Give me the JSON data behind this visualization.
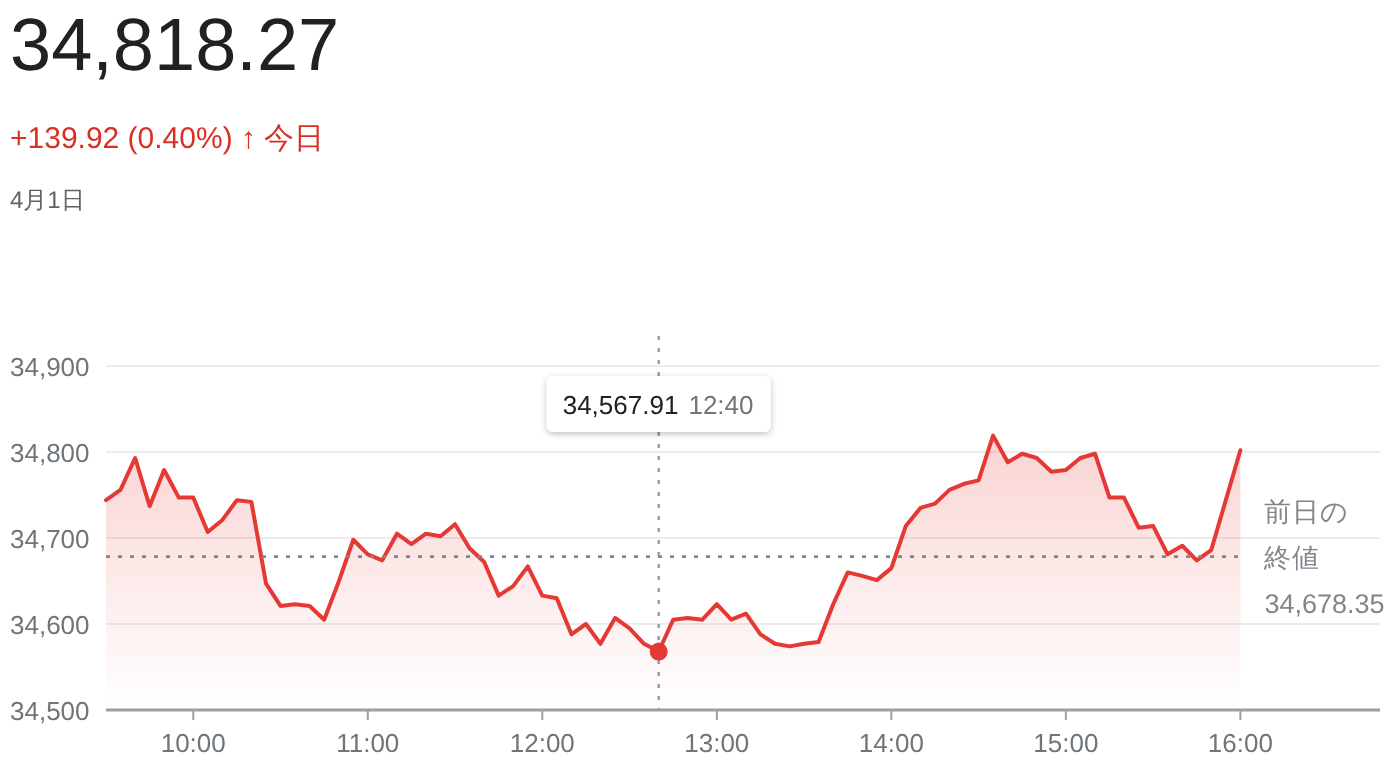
{
  "chart_data": {
    "type": "area",
    "title": "34,818.27",
    "subtitle": "+139.92 (0.40%) ↑ 今日",
    "annotations": [
      "4月1日",
      "34,567.91 12:40"
    ],
    "x": [
      9.5,
      9.583,
      9.667,
      9.75,
      9.833,
      9.917,
      10,
      10.083,
      10.167,
      10.25,
      10.333,
      10.417,
      10.5,
      10.583,
      10.667,
      10.75,
      10.833,
      10.917,
      11,
      11.083,
      11.167,
      11.25,
      11.333,
      11.417,
      11.5,
      11.583,
      11.667,
      11.75,
      11.833,
      11.917,
      12,
      12.083,
      12.167,
      12.25,
      12.333,
      12.417,
      12.5,
      12.583,
      12.667,
      12.75,
      12.833,
      12.917,
      13,
      13.083,
      13.167,
      13.25,
      13.333,
      13.417,
      13.5,
      13.583,
      13.667,
      13.75,
      13.833,
      13.917,
      14,
      14.083,
      14.167,
      14.25,
      14.333,
      14.417,
      14.5,
      14.583,
      14.667,
      14.75,
      14.833,
      14.917,
      15,
      15.083,
      15.167,
      15.25,
      15.333,
      15.417,
      15.5,
      15.583,
      15.667,
      15.75,
      15.833,
      16
    ],
    "series": [
      {
        "color": "#e53935",
        "values": [
          34744,
          34756,
          34793,
          34737,
          34779,
          34747,
          34747,
          34707,
          34721,
          34744,
          34742,
          34647,
          34621,
          34623,
          34621,
          34605,
          34649,
          34698,
          34681,
          34674,
          34705,
          34693,
          34705,
          34702,
          34716,
          34688,
          34672,
          34633,
          34644,
          34667,
          34633,
          34630,
          34588,
          34600,
          34577,
          34607,
          34595,
          34577,
          34568,
          34605,
          34607,
          34605,
          34623,
          34605,
          34612,
          34588,
          34577,
          34574,
          34577,
          34579,
          34623,
          34660,
          34656,
          34651,
          34665,
          34714,
          34735,
          34740,
          34756,
          34763,
          34767,
          34819,
          34788,
          34798,
          34793,
          34777,
          34779,
          34793,
          34798,
          34747,
          34747,
          34712,
          34714,
          34681,
          34691,
          34674,
          34686,
          34802
        ]
      }
    ],
    "xlim": [
      9.5,
      16.8
    ],
    "ylim": [
      34500,
      34900
    ],
    "xticks": [
      {
        "value": 10,
        "label": "10:00"
      },
      {
        "value": 11,
        "label": "11:00"
      },
      {
        "value": 12,
        "label": "12:00"
      },
      {
        "value": 13,
        "label": "13:00"
      },
      {
        "value": 14,
        "label": "14:00"
      },
      {
        "value": 15,
        "label": "15:00"
      },
      {
        "value": 16,
        "label": "16:00"
      }
    ],
    "yticks": [
      {
        "value": 34500,
        "label": "34,500"
      },
      {
        "value": 34600,
        "label": "34,600"
      },
      {
        "value": 34700,
        "label": "34,700"
      },
      {
        "value": 34800,
        "label": "34,800"
      },
      {
        "value": 34900,
        "label": "34,900"
      }
    ],
    "ref_lines": [
      {
        "axis": "y",
        "value": 34678.35,
        "label": "前日の終値34,678.35",
        "color": "#80868b",
        "line_style": "dotted"
      },
      {
        "axis": "x",
        "value": 12.667,
        "color": "#9aa0a6",
        "line_style": "dotted"
      }
    ],
    "grid": "y"
  }
}
